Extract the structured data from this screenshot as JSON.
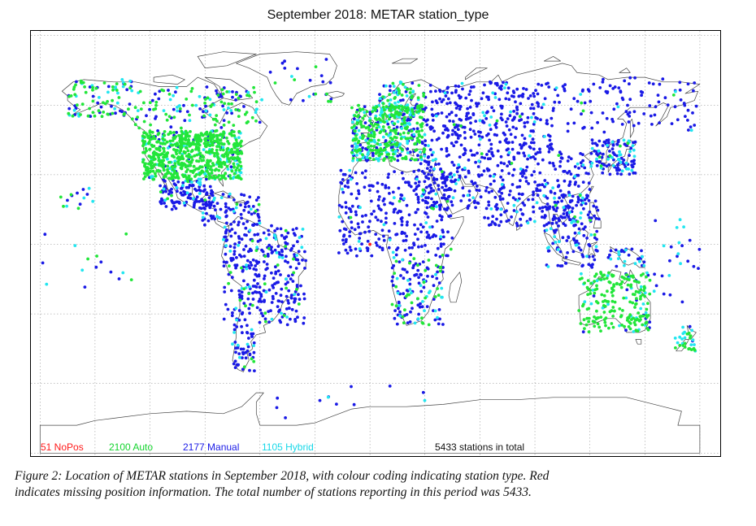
{
  "title": "September 2018: METAR station_type",
  "legend": {
    "nopos": "51 NoPos",
    "auto": "2100 Auto",
    "manual": "2177 Manual",
    "hybrid": "1105 Hybrid",
    "total": "5433 stations in total"
  },
  "colors": {
    "nopos": "#ff1a1a",
    "auto": "#22e63a",
    "manual": "#1a1ae6",
    "hybrid": "#22e6f0",
    "coast": "#444444",
    "grid": "#888888"
  },
  "caption": {
    "line1": "Figure 2: Location of METAR stations in September 2018, with colour coding indicating station type. Red",
    "line2": "indicates missing position information. The total number of stations reporting in this period was 5433."
  },
  "stations": {
    "nopos_lonlat": [
      [
        0,
        0
      ]
    ]
  }
}
